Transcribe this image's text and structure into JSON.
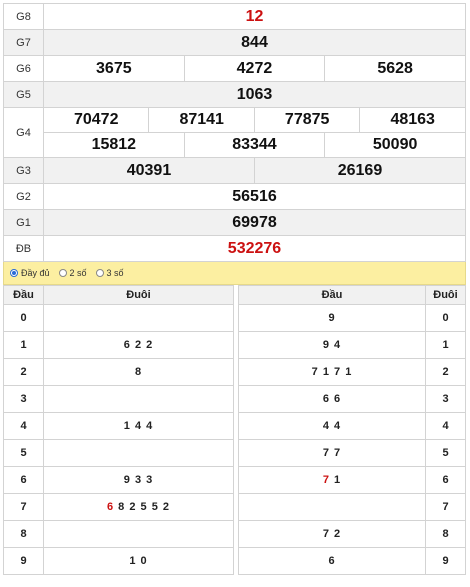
{
  "prizes": {
    "g8": {
      "label": "G8",
      "values": [
        "12"
      ]
    },
    "g7": {
      "label": "G7",
      "values": [
        "844"
      ]
    },
    "g6": {
      "label": "G6",
      "values": [
        "3675",
        "4272",
        "5628"
      ]
    },
    "g5": {
      "label": "G5",
      "values": [
        "1063"
      ]
    },
    "g4": {
      "label": "G4",
      "row1": [
        "70472",
        "87141",
        "77875",
        "48163"
      ],
      "row2": [
        "15812",
        "83344",
        "50090"
      ]
    },
    "g3": {
      "label": "G3",
      "values": [
        "40391",
        "26169"
      ]
    },
    "g2": {
      "label": "G2",
      "values": [
        "56516"
      ]
    },
    "g1": {
      "label": "G1",
      "values": [
        "69978"
      ]
    },
    "db": {
      "label": "ĐB",
      "values": [
        "532276"
      ]
    }
  },
  "options": {
    "full": "Đầy đủ",
    "two": "2 số",
    "three": "3 số",
    "selected": "full"
  },
  "loto_left": {
    "head_col": "Đầu",
    "tail_col": "Đuôi",
    "rows": [
      {
        "head": "0",
        "highlight": "",
        "rest": ""
      },
      {
        "head": "1",
        "highlight": "",
        "rest": "6 2 2"
      },
      {
        "head": "2",
        "highlight": "",
        "rest": "8"
      },
      {
        "head": "3",
        "highlight": "",
        "rest": ""
      },
      {
        "head": "4",
        "highlight": "",
        "rest": "1 4 4"
      },
      {
        "head": "5",
        "highlight": "",
        "rest": ""
      },
      {
        "head": "6",
        "highlight": "",
        "rest": "9 3 3"
      },
      {
        "head": "7",
        "highlight": "6",
        "rest": " 8 2 5 5 2"
      },
      {
        "head": "8",
        "highlight": "",
        "rest": ""
      },
      {
        "head": "9",
        "highlight": "",
        "rest": "1 0"
      }
    ]
  },
  "loto_right": {
    "head_col": "Đầu",
    "tail_col": "Đuôi",
    "rows": [
      {
        "tail": "0",
        "highlight": "",
        "rest": "9"
      },
      {
        "tail": "1",
        "highlight": "",
        "rest": "9 4"
      },
      {
        "tail": "2",
        "highlight": "",
        "rest": "7 1 7 1"
      },
      {
        "tail": "3",
        "highlight": "",
        "rest": "6 6"
      },
      {
        "tail": "4",
        "highlight": "",
        "rest": "4 4"
      },
      {
        "tail": "5",
        "highlight": "",
        "rest": "7 7"
      },
      {
        "tail": "6",
        "highlight": "7",
        "rest": " 1"
      },
      {
        "tail": "7",
        "highlight": "",
        "rest": ""
      },
      {
        "tail": "8",
        "highlight": "",
        "rest": "7 2"
      },
      {
        "tail": "9",
        "highlight": "",
        "rest": "6"
      }
    ]
  },
  "colors": {
    "special_prize": "#cc1111",
    "option_bar": "#fcefa1",
    "alt_row": "#f1f1f1"
  }
}
